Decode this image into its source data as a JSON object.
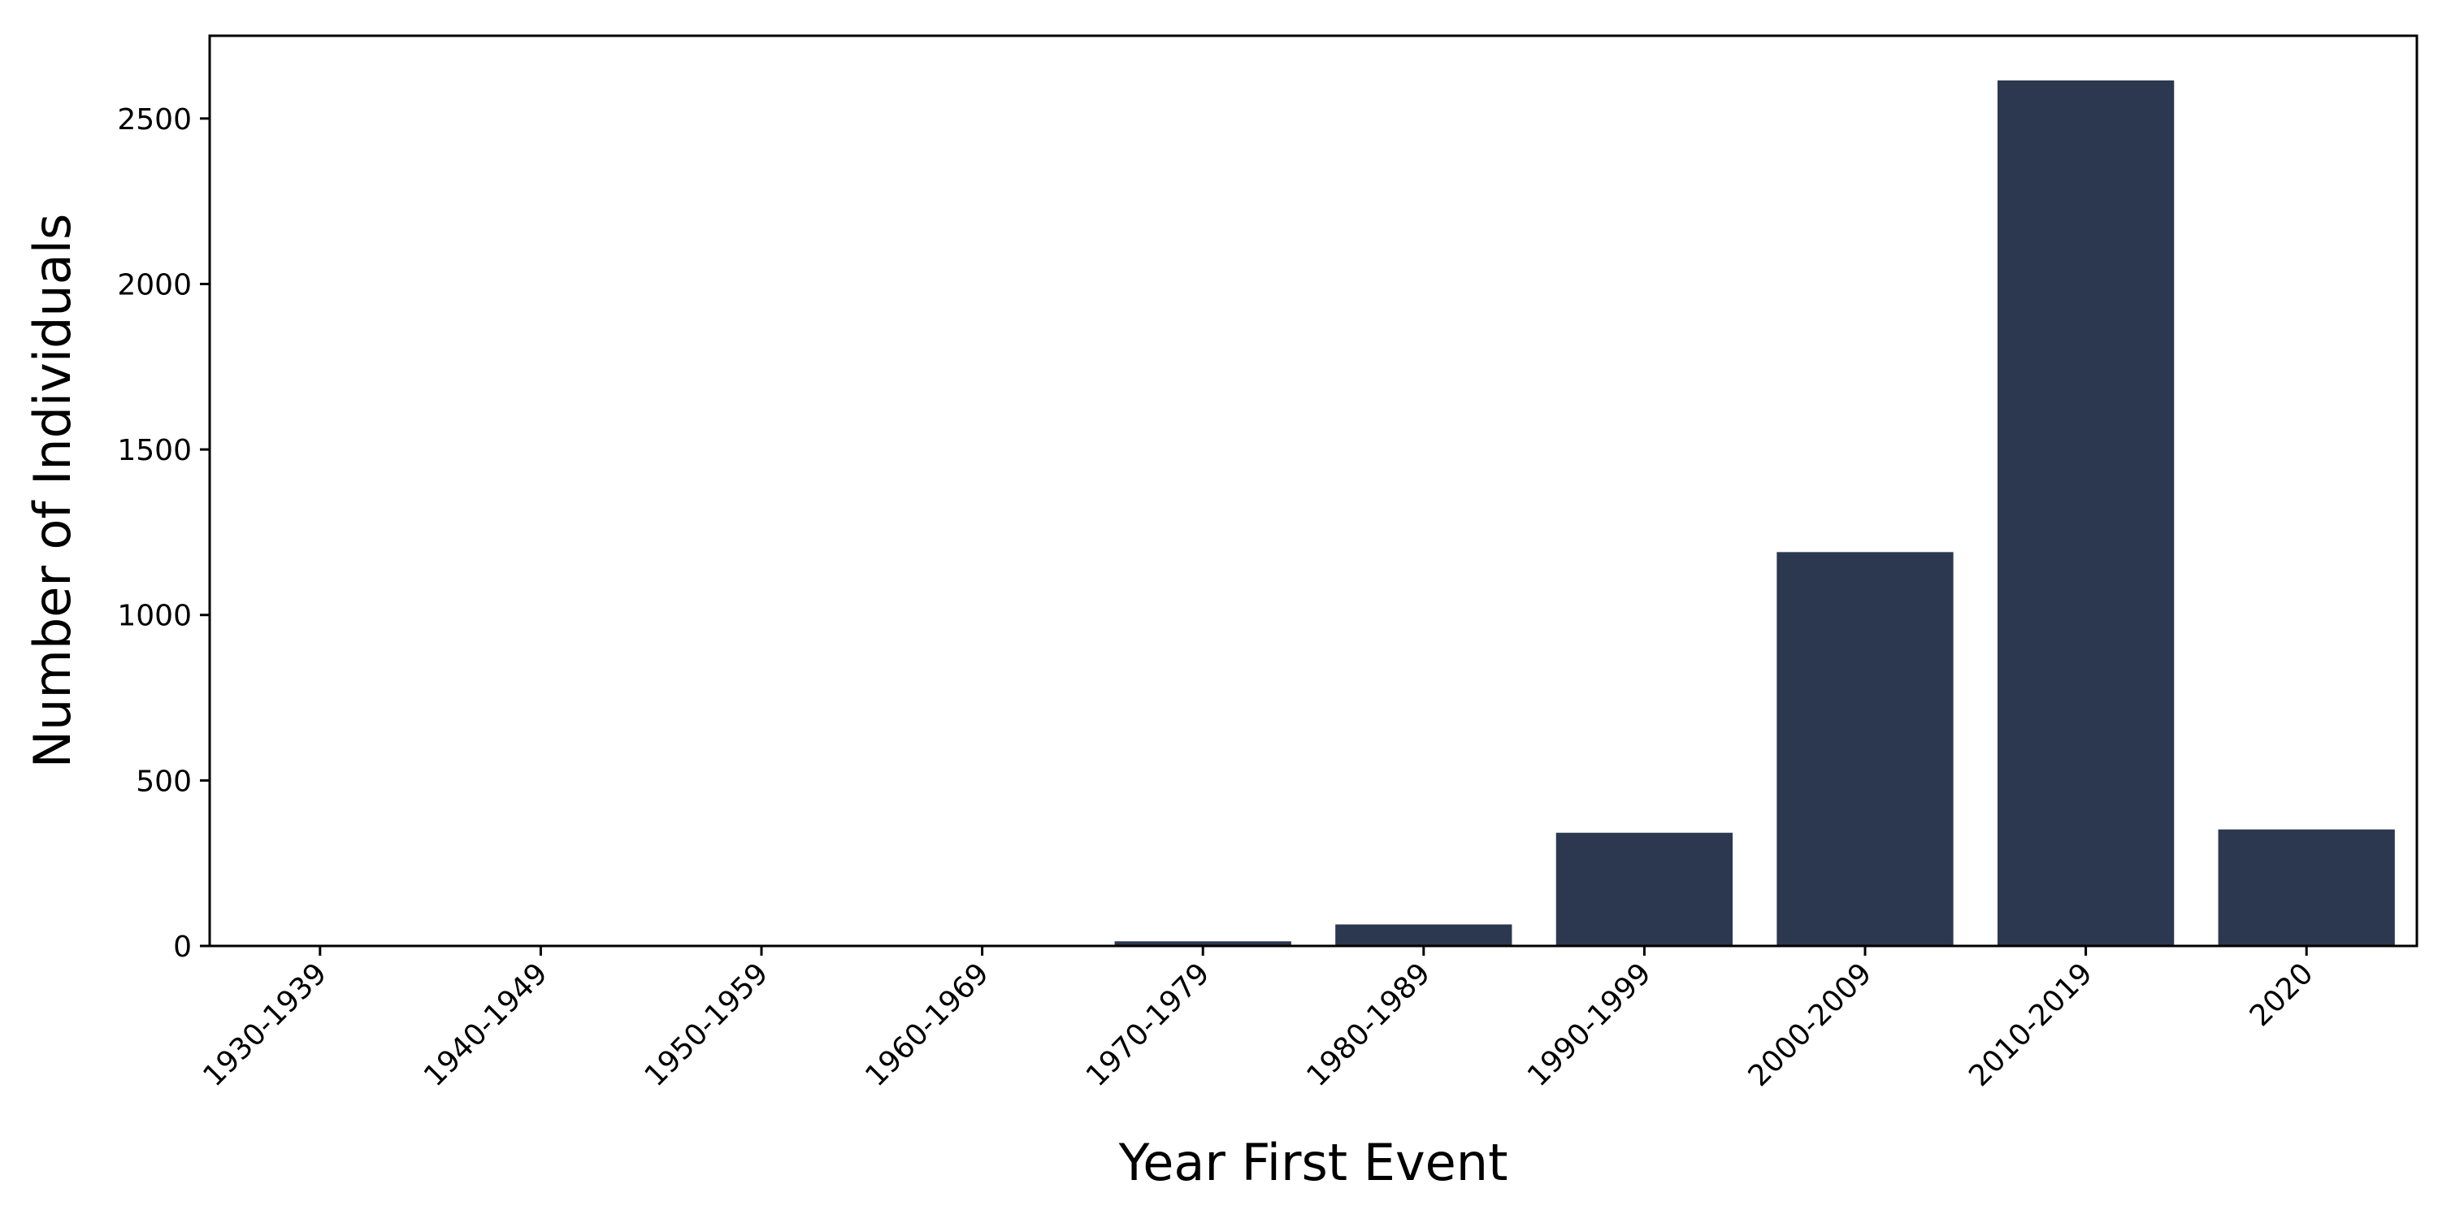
{
  "chart_data": {
    "type": "bar",
    "title": "",
    "xlabel": "Year First Event",
    "ylabel": "Number of Individuals",
    "categories": [
      "1930-1939",
      "1940-1949",
      "1950-1959",
      "1960-1969",
      "1970-1979",
      "1980-1989",
      "1990-1999",
      "2000-2009",
      "2010-2019",
      "2020"
    ],
    "values": [
      1,
      1,
      1,
      2,
      14,
      65,
      342,
      1190,
      2615,
      352
    ],
    "yticks": [
      0,
      500,
      1000,
      1500,
      2000,
      2500
    ],
    "ylim": [
      0,
      2750
    ],
    "bar_color": "#2c3850",
    "grid": false,
    "legend": "none"
  }
}
